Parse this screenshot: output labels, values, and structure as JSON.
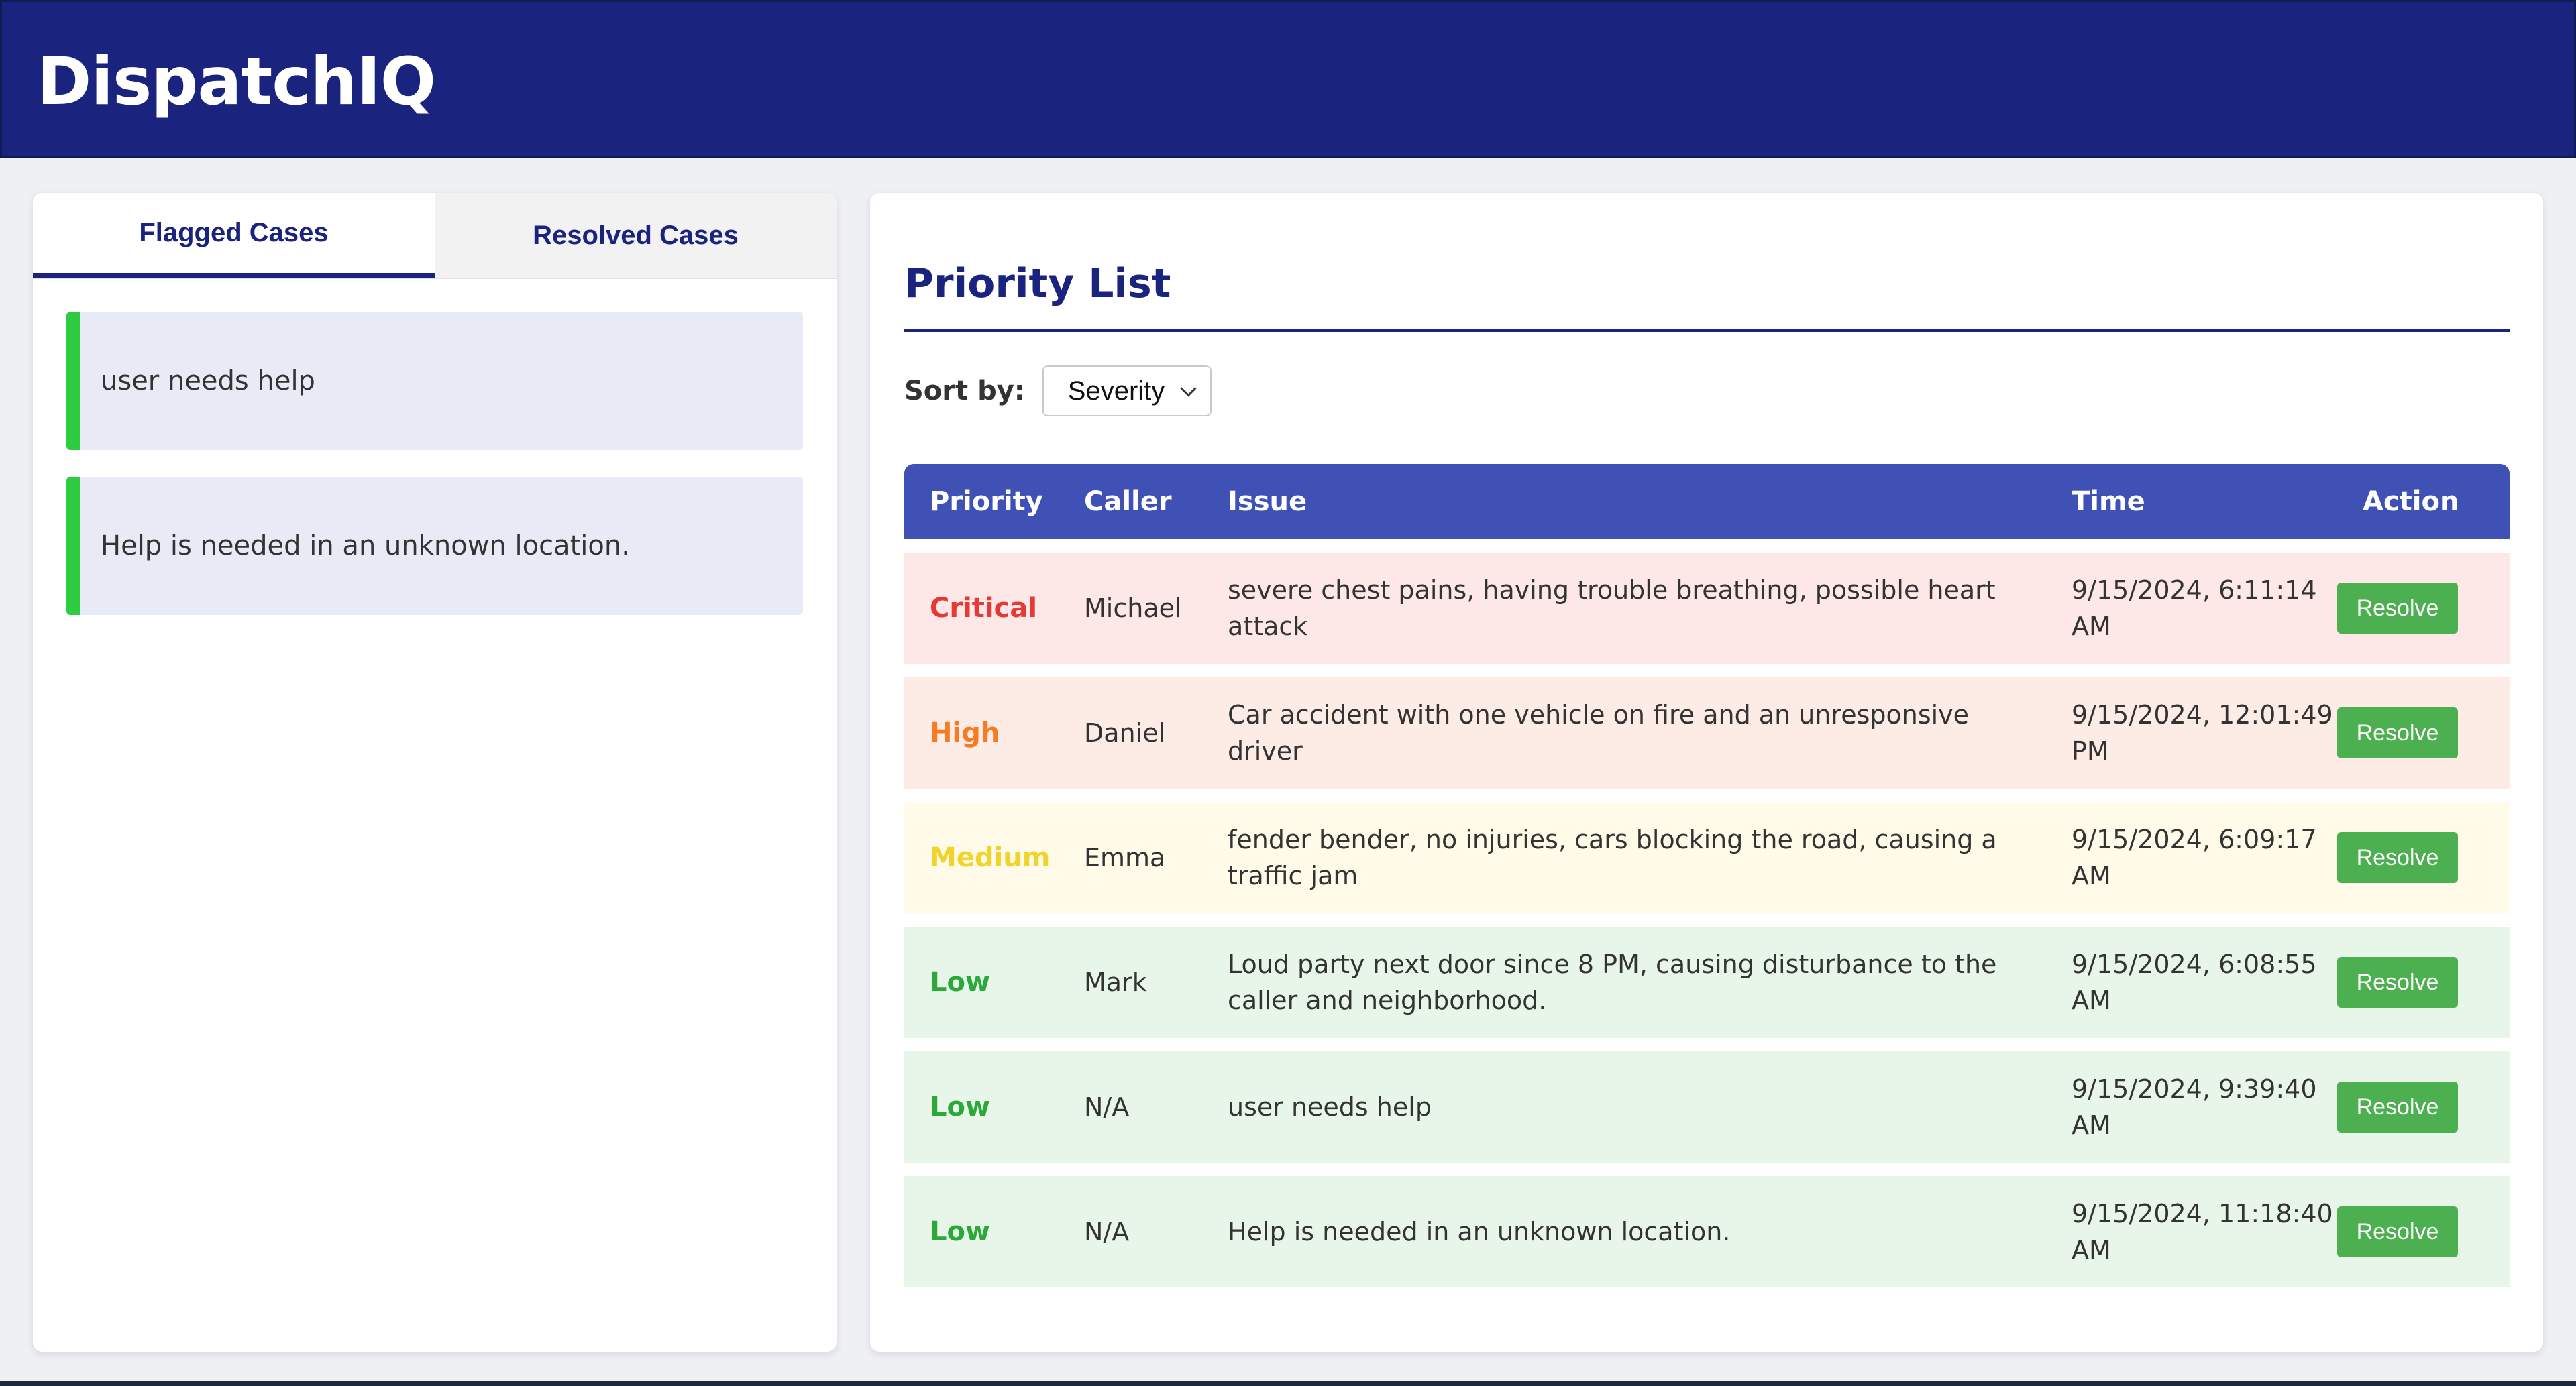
{
  "header": {
    "title": "DispatchIQ"
  },
  "tabs": {
    "flagged": "Flagged Cases",
    "resolved": "Resolved Cases"
  },
  "flagged_cases": [
    "user needs help",
    "Help is needed in an unknown location."
  ],
  "priority": {
    "title": "Priority List",
    "sort_label": "Sort by:",
    "sort_value": "Severity"
  },
  "table": {
    "headers": {
      "priority": "Priority",
      "caller": "Caller",
      "issue": "Issue",
      "time": "Time",
      "action": "Action"
    },
    "rows": [
      {
        "priority": "Critical",
        "caller": "Michael",
        "issue": "severe chest pains, having trouble breathing, possible heart attack",
        "time": "9/15/2024, 6:11:14 AM",
        "action": "Resolve"
      },
      {
        "priority": "High",
        "caller": "Daniel",
        "issue": "Car accident with one vehicle on fire and an unresponsive driver",
        "time": "9/15/2024, 12:01:49 PM",
        "action": "Resolve"
      },
      {
        "priority": "Medium",
        "caller": "Emma",
        "issue": "fender bender, no injuries, cars blocking the road, causing a traffic jam",
        "time": "9/15/2024, 6:09:17 AM",
        "action": "Resolve"
      },
      {
        "priority": "Low",
        "caller": "Mark",
        "issue": "Loud party next door since 8 PM, causing disturbance to the caller and neighborhood.",
        "time": "9/15/2024, 6:08:55 AM",
        "action": "Resolve"
      },
      {
        "priority": "Low",
        "caller": "N/A",
        "issue": "user needs help",
        "time": "9/15/2024, 9:39:40 AM",
        "action": "Resolve"
      },
      {
        "priority": "Low",
        "caller": "N/A",
        "issue": "Help is needed in an unknown location.",
        "time": "9/15/2024, 11:18:40 AM",
        "action": "Resolve"
      }
    ]
  },
  "colors": {
    "header_bg": "#1a237e",
    "table_header_bg": "#3f51b5",
    "critical_text": "#e53935",
    "critical_bg": "#fde7e7",
    "high_text": "#f57c22",
    "high_bg": "#fdece6",
    "medium_text": "#f2d32b",
    "medium_bg": "#fffbe8",
    "low_text": "#2aa838",
    "low_bg": "#e8f6ea",
    "flag_border": "#2ecc40",
    "resolve_button": "#4caf50"
  }
}
